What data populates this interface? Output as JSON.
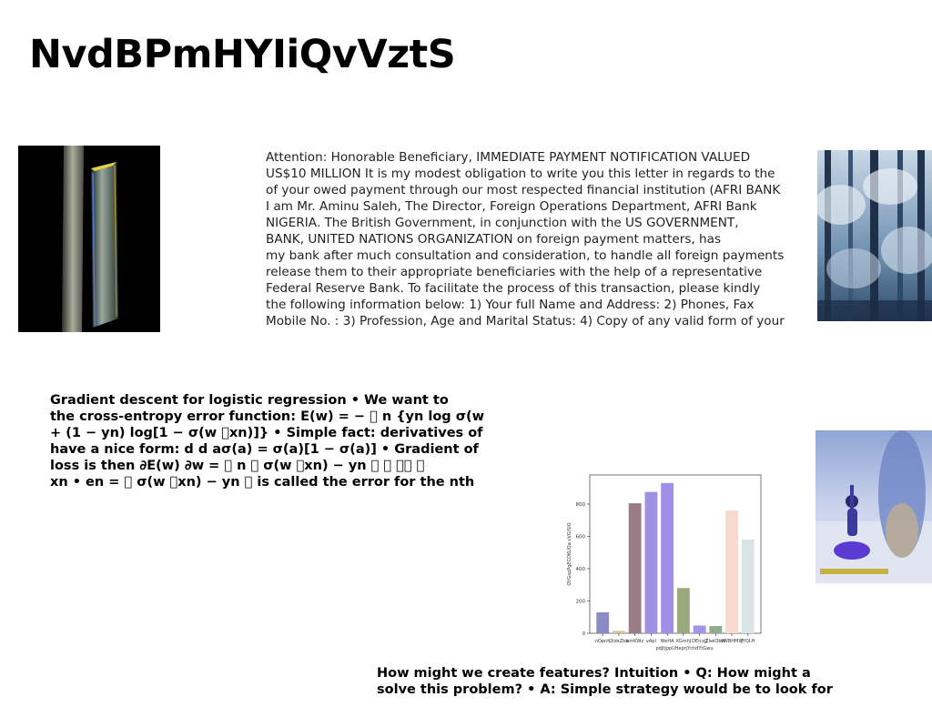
{
  "title": "NvdBPmHYIiQvVztS",
  "letter_lines": [
    "Attention: Honorable Beneficiary, IMMEDIATE PAYMENT NOTIFICATION VALUED",
    "US$10 MILLION It is my modest obligation to write you this letter in regards to the",
    "of your owed payment through our most respected financial institution (AFRI BANK",
    "I am Mr. Aminu Saleh, The Director, Foreign Operations Department, AFRI Bank",
    "NIGERIA. The British Government, in conjunction with the US GOVERNMENT,",
    "BANK, UNITED NATIONS ORGANIZATION on foreign payment matters, has",
    "my bank after much consultation and consideration, to handle all foreign payments",
    "release them to their appropriate beneficiaries with the help of a representative",
    "Federal Reserve Bank. To facilitate the process of this transaction, please kindly",
    "the following information below: 1) Your full Name and Address: 2) Phones, Fax",
    "Mobile No. : 3) Profession, Age and Marital Status: 4) Copy of any valid form of your"
  ],
  "gradient_lines": [
    "Gradient descent for logistic regression • We want to",
    "the cross-entropy error function: E(w) = − ￿ n {yn log σ(w",
    "+ (1 − yn) log[1 − σ(w ￿xn)]} • Simple fact: derivatives of",
    "have a nice form: d d aσ(a) = σ(a)[1 − σ(a)] • Gradient of",
    "loss is then ∂E(w) ∂w = ￿ n ￿ σ(w ￿xn) − yn ￿ ￿ ￿￿ ￿",
    "xn • en = ￿ σ(w ￿xn) − yn ￿ is called the error for the nth"
  ],
  "features_lines": [
    "How might we create features? Intuition • Q: How might a",
    "solve this problem? • A: Simple strategy would be to look for"
  ],
  "chart_data": {
    "type": "bar",
    "ylabel": "OYGxpPgECOKUQa vVGiSlO",
    "ylim": [
      0,
      980
    ],
    "yticks": [
      0,
      200,
      400,
      600,
      800
    ],
    "categories": [
      "nOpnh",
      "QldxZbb",
      "emKWz",
      "vApl",
      "WeHA",
      "XGmhJ",
      "DEicxJJ",
      "ZiwlObW",
      "oWBHMW",
      "JYQLH"
    ],
    "extra_tick_labels": [
      "pdJtJppUHeprjYchdYtGwu"
    ],
    "values": [
      130,
      15,
      805,
      875,
      930,
      280,
      48,
      45,
      760,
      580
    ],
    "colors": [
      "#8c8cc4",
      "#d9c39a",
      "#9a7c84",
      "#a090e4",
      "#a08ee8",
      "#97a97d",
      "#a294e6",
      "#8fab8c",
      "#f7d9cf",
      "#d9e4e4"
    ]
  }
}
